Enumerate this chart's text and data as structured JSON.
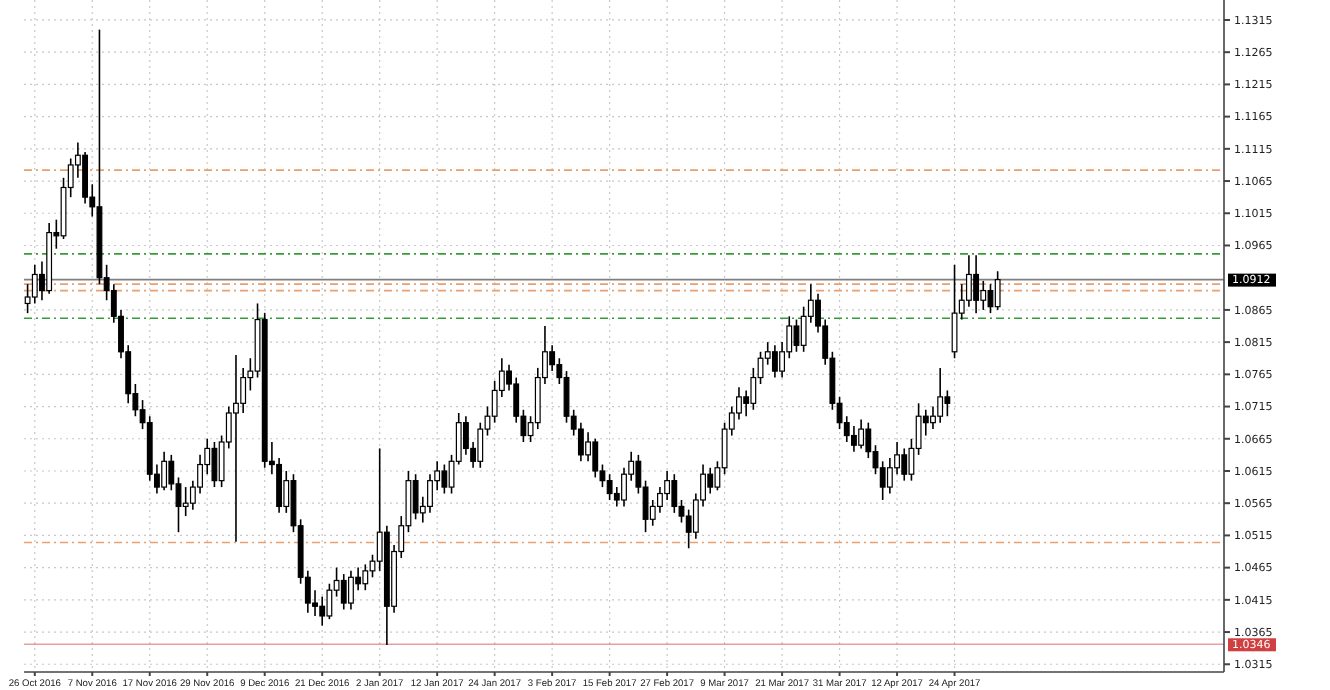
{
  "chart_data": {
    "type": "candlestick",
    "categories": [
      null,
      "26 Oct 2016",
      null,
      null,
      null,
      null,
      null,
      null,
      null,
      "7 Nov 2016",
      null,
      null,
      null,
      null,
      null,
      null,
      null,
      "17 Nov 2016",
      null,
      null,
      null,
      null,
      null,
      null,
      null,
      "29 Nov 2016",
      null,
      null,
      null,
      null,
      null,
      null,
      null,
      "9 Dec 2016",
      null,
      null,
      null,
      null,
      null,
      null,
      null,
      "21 Dec 2016",
      null,
      null,
      null,
      null,
      null,
      null,
      null,
      "2 Jan 2017",
      null,
      null,
      null,
      null,
      null,
      null,
      null,
      "12 Jan 2017",
      null,
      null,
      null,
      null,
      null,
      null,
      null,
      "24 Jan 2017",
      null,
      null,
      null,
      null,
      null,
      null,
      null,
      "3 Feb 2017",
      null,
      null,
      null,
      null,
      null,
      null,
      null,
      "15 Feb 2017",
      null,
      null,
      null,
      null,
      null,
      null,
      null,
      "27 Feb 2017",
      null,
      null,
      null,
      null,
      null,
      null,
      null,
      "9 Mar 2017",
      null,
      null,
      null,
      null,
      null,
      null,
      null,
      "21 Mar 2017",
      null,
      null,
      null,
      null,
      null,
      null,
      null,
      "31 Mar 2017",
      null,
      null,
      null,
      null,
      null,
      null,
      null,
      "12 Apr 2017",
      null,
      null,
      null,
      null,
      null,
      null,
      null,
      "24 Apr 2017",
      null,
      null,
      null,
      null,
      null,
      null,
      null,
      null,
      null,
      null,
      null,
      null,
      null,
      null,
      null,
      null,
      null,
      null,
      null,
      null,
      null,
      null,
      null,
      null,
      null,
      null,
      null,
      null,
      null,
      null,
      null,
      null,
      null,
      null,
      null,
      null,
      null
    ],
    "ohlc": [
      [
        1.0875,
        1.0905,
        1.086,
        1.0885
      ],
      [
        1.0885,
        1.0935,
        1.0875,
        1.092
      ],
      [
        1.092,
        1.094,
        1.088,
        1.0895
      ],
      [
        1.0895,
        1.1,
        1.089,
        1.0985
      ],
      [
        1.0985,
        1.1005,
        1.096,
        1.098
      ],
      [
        1.098,
        1.107,
        1.0975,
        1.1055
      ],
      [
        1.1055,
        1.11,
        1.104,
        1.109
      ],
      [
        1.109,
        1.1125,
        1.107,
        1.1105
      ],
      [
        1.1105,
        1.111,
        1.103,
        1.104
      ],
      [
        1.104,
        1.106,
        1.101,
        1.1025
      ],
      [
        1.1025,
        1.13,
        1.0905,
        1.0915
      ],
      [
        1.0915,
        1.0935,
        1.088,
        1.0895
      ],
      [
        1.0895,
        1.0905,
        1.0845,
        1.0855
      ],
      [
        1.0855,
        1.0865,
        1.079,
        1.08
      ],
      [
        1.08,
        1.081,
        1.072,
        1.0735
      ],
      [
        1.0735,
        1.075,
        1.07,
        1.071
      ],
      [
        1.071,
        1.0725,
        1.068,
        1.069
      ],
      [
        1.069,
        1.07,
        1.06,
        1.061
      ],
      [
        1.061,
        1.0625,
        1.058,
        1.059
      ],
      [
        1.059,
        1.0645,
        1.0585,
        1.063
      ],
      [
        1.063,
        1.064,
        1.0585,
        1.0595
      ],
      [
        1.0595,
        1.0605,
        1.052,
        1.056
      ],
      [
        1.056,
        1.059,
        1.0545,
        1.0565
      ],
      [
        1.0565,
        1.06,
        1.0555,
        1.059
      ],
      [
        1.059,
        1.064,
        1.058,
        1.0625
      ],
      [
        1.0625,
        1.0665,
        1.061,
        1.065
      ],
      [
        1.065,
        1.066,
        1.059,
        1.06
      ],
      [
        1.06,
        1.067,
        1.059,
        1.066
      ],
      [
        1.066,
        1.0715,
        1.065,
        1.0705
      ],
      [
        1.0705,
        1.0795,
        1.0505,
        1.072
      ],
      [
        1.072,
        1.0775,
        1.0705,
        1.076
      ],
      [
        1.076,
        1.079,
        1.074,
        1.077
      ],
      [
        1.077,
        1.0875,
        1.076,
        1.085
      ],
      [
        1.085,
        1.086,
        1.062,
        1.063
      ],
      [
        1.063,
        1.066,
        1.061,
        1.0625
      ],
      [
        1.0625,
        1.0635,
        1.055,
        1.056
      ],
      [
        1.056,
        1.0615,
        1.055,
        1.06
      ],
      [
        1.06,
        1.061,
        1.052,
        1.053
      ],
      [
        1.053,
        1.054,
        1.044,
        1.045
      ],
      [
        1.045,
        1.046,
        1.0395,
        1.041
      ],
      [
        1.041,
        1.043,
        1.039,
        1.0405
      ],
      [
        1.0405,
        1.042,
        1.0375,
        1.039
      ],
      [
        1.039,
        1.044,
        1.0385,
        1.043
      ],
      [
        1.043,
        1.0465,
        1.042,
        1.0445
      ],
      [
        1.0445,
        1.0455,
        1.04,
        1.041
      ],
      [
        1.041,
        1.046,
        1.04,
        1.045
      ],
      [
        1.045,
        1.0465,
        1.043,
        1.044
      ],
      [
        1.044,
        1.047,
        1.043,
        1.046
      ],
      [
        1.046,
        1.0485,
        1.045,
        1.0475
      ],
      [
        1.0475,
        1.065,
        1.046,
        1.052
      ],
      [
        1.052,
        1.053,
        1.0345,
        1.0405
      ],
      [
        1.0405,
        1.05,
        1.0395,
        1.049
      ],
      [
        1.049,
        1.0545,
        1.048,
        1.053
      ],
      [
        1.053,
        1.0615,
        1.052,
        1.06
      ],
      [
        1.06,
        1.061,
        1.054,
        1.055
      ],
      [
        1.055,
        1.0575,
        1.0535,
        1.056
      ],
      [
        1.056,
        1.061,
        1.055,
        1.06
      ],
      [
        1.06,
        1.063,
        1.0585,
        1.0615
      ],
      [
        1.0615,
        1.0625,
        1.058,
        1.059
      ],
      [
        1.059,
        1.064,
        1.058,
        1.063
      ],
      [
        1.063,
        1.0705,
        1.0625,
        1.069
      ],
      [
        1.069,
        1.07,
        1.064,
        1.065
      ],
      [
        1.065,
        1.066,
        1.062,
        1.063
      ],
      [
        1.063,
        1.069,
        1.062,
        1.068
      ],
      [
        1.068,
        1.0715,
        1.067,
        1.07
      ],
      [
        1.07,
        1.0755,
        1.069,
        1.074
      ],
      [
        1.074,
        1.079,
        1.073,
        1.077
      ],
      [
        1.077,
        1.078,
        1.074,
        1.075
      ],
      [
        1.075,
        1.076,
        1.069,
        1.07
      ],
      [
        1.07,
        1.071,
        1.066,
        1.067
      ],
      [
        1.067,
        1.07,
        1.066,
        1.069
      ],
      [
        1.069,
        1.0775,
        1.068,
        1.076
      ],
      [
        1.076,
        1.084,
        1.075,
        1.08
      ],
      [
        1.08,
        1.081,
        1.077,
        1.078
      ],
      [
        1.078,
        1.079,
        1.075,
        1.076
      ],
      [
        1.076,
        1.077,
        1.069,
        1.07
      ],
      [
        1.07,
        1.071,
        1.067,
        1.068
      ],
      [
        1.068,
        1.069,
        1.063,
        1.064
      ],
      [
        1.064,
        1.0675,
        1.063,
        1.066
      ],
      [
        1.066,
        1.0665,
        1.0605,
        1.0615
      ],
      [
        1.0615,
        1.0625,
        1.059,
        1.06
      ],
      [
        1.06,
        1.061,
        1.057,
        1.058
      ],
      [
        1.058,
        1.059,
        1.056,
        1.057
      ],
      [
        1.057,
        1.062,
        1.056,
        1.061
      ],
      [
        1.061,
        1.0645,
        1.06,
        1.063
      ],
      [
        1.063,
        1.064,
        1.058,
        1.059
      ],
      [
        1.059,
        1.06,
        1.052,
        1.054
      ],
      [
        1.054,
        1.057,
        1.053,
        1.056
      ],
      [
        1.056,
        1.059,
        1.055,
        1.058
      ],
      [
        1.058,
        1.0615,
        1.057,
        1.06
      ],
      [
        1.06,
        1.061,
        1.055,
        1.056
      ],
      [
        1.056,
        1.057,
        1.0535,
        1.0545
      ],
      [
        1.0545,
        1.0555,
        1.0495,
        1.052
      ],
      [
        1.052,
        1.058,
        1.051,
        1.057
      ],
      [
        1.057,
        1.0625,
        1.056,
        1.061
      ],
      [
        1.061,
        1.062,
        1.058,
        1.059
      ],
      [
        1.059,
        1.063,
        1.0585,
        1.062
      ],
      [
        1.062,
        1.069,
        1.061,
        1.068
      ],
      [
        1.068,
        1.0715,
        1.067,
        1.0705
      ],
      [
        1.0705,
        1.0745,
        1.0695,
        1.073
      ],
      [
        1.073,
        1.074,
        1.07,
        1.072
      ],
      [
        1.072,
        1.0775,
        1.071,
        1.076
      ],
      [
        1.076,
        1.08,
        1.075,
        1.079
      ],
      [
        1.079,
        1.0815,
        1.078,
        1.08
      ],
      [
        1.08,
        1.081,
        1.076,
        1.077
      ],
      [
        1.077,
        1.0815,
        1.076,
        1.08
      ],
      [
        1.08,
        1.0855,
        1.079,
        1.084
      ],
      [
        1.084,
        1.085,
        1.08,
        1.081
      ],
      [
        1.081,
        1.087,
        1.08,
        1.0855
      ],
      [
        1.0855,
        1.0905,
        1.0845,
        1.088
      ],
      [
        1.088,
        1.089,
        1.083,
        1.084
      ],
      [
        1.084,
        1.085,
        1.078,
        1.079
      ],
      [
        1.079,
        1.08,
        1.071,
        1.072
      ],
      [
        1.072,
        1.073,
        1.068,
        1.069
      ],
      [
        1.069,
        1.07,
        1.066,
        1.067
      ],
      [
        1.067,
        1.0685,
        1.0645,
        1.0655
      ],
      [
        1.0655,
        1.0695,
        1.065,
        1.068
      ],
      [
        1.068,
        1.069,
        1.0635,
        1.0645
      ],
      [
        1.0645,
        1.0655,
        1.061,
        1.062
      ],
      [
        1.062,
        1.063,
        1.057,
        1.059
      ],
      [
        1.059,
        1.0635,
        1.058,
        1.062
      ],
      [
        1.062,
        1.066,
        1.061,
        1.064
      ],
      [
        1.064,
        1.065,
        1.06,
        1.061
      ],
      [
        1.061,
        1.0665,
        1.06,
        1.065
      ],
      [
        1.065,
        1.072,
        1.064,
        1.07
      ],
      [
        1.07,
        1.071,
        1.067,
        1.069
      ],
      [
        1.069,
        1.0715,
        1.068,
        1.07
      ],
      [
        1.07,
        1.0775,
        1.069,
        1.073
      ],
      [
        1.073,
        1.074,
        1.07,
        1.072
      ],
      [
        1.08,
        1.0935,
        1.079,
        1.086
      ],
      [
        1.086,
        1.0905,
        1.085,
        1.088
      ],
      [
        1.088,
        1.095,
        1.087,
        1.092
      ],
      [
        1.092,
        1.095,
        1.086,
        1.088
      ],
      [
        1.088,
        1.091,
        1.0865,
        1.0895
      ],
      [
        1.0895,
        1.0905,
        1.086,
        1.087
      ],
      [
        1.087,
        1.0925,
        1.0865,
        1.0912
      ],
      null,
      null,
      null,
      null,
      null,
      null,
      null,
      null,
      null,
      null,
      null,
      null,
      null,
      null,
      null,
      null,
      null,
      null,
      null,
      null,
      null,
      null,
      null,
      null,
      null,
      null,
      null,
      null,
      null,
      null,
      null
    ],
    "ylim": [
      1.0303,
      1.1346
    ],
    "yticks": [
      1.0315,
      1.0365,
      1.0415,
      1.0465,
      1.0515,
      1.0565,
      1.0615,
      1.0665,
      1.0715,
      1.0765,
      1.0815,
      1.0865,
      1.0965,
      1.1015,
      1.1065,
      1.1115,
      1.1165,
      1.1215,
      1.1265,
      1.1315
    ],
    "grid": true,
    "ref_lines": [
      {
        "axis": "y",
        "value": 1.1082,
        "color": "#e8a070",
        "line_style": "dashed"
      },
      {
        "axis": "y",
        "value": 1.0952,
        "color": "#3a9a3a",
        "line_style": "dashed"
      },
      {
        "axis": "y",
        "value": 1.0912,
        "label": "1.0912",
        "color": "#000000"
      },
      {
        "axis": "y",
        "value": 1.0905,
        "color": "#e8a070",
        "line_style": "dashed"
      },
      {
        "axis": "y",
        "value": 1.0895,
        "color": "#e8a070",
        "line_style": "dashed"
      },
      {
        "axis": "y",
        "value": 1.0852,
        "color": "#3a9a3a",
        "line_style": "dashed"
      },
      {
        "axis": "y",
        "value": 1.0504,
        "color": "#e8a070",
        "line_style": "dashed"
      },
      {
        "axis": "y",
        "value": 1.0346,
        "label": "1.0346",
        "color": "#d04040"
      }
    ]
  }
}
